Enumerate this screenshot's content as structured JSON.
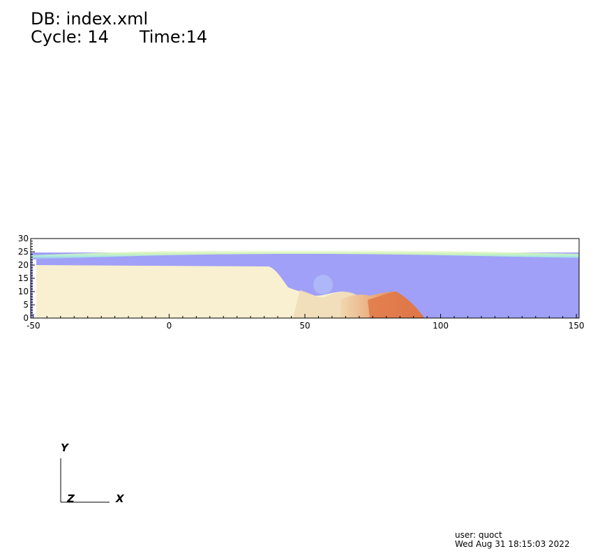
{
  "header": {
    "db_label": "DB: index.xml",
    "cycle_label": "Cycle: 14",
    "time_label": "Time:14"
  },
  "plot": {
    "x_ticks": [
      "-50",
      "0",
      "50",
      "100",
      "150"
    ],
    "x_tick_values": [
      -50,
      0,
      50,
      100,
      150
    ],
    "y_ticks": [
      "0",
      "5",
      "10",
      "15",
      "20",
      "25",
      "30"
    ],
    "y_tick_values": [
      0,
      5,
      10,
      15,
      20,
      25,
      30
    ],
    "x_range": [
      -51,
      151
    ],
    "y_range": [
      0,
      30
    ],
    "colors": {
      "water": "#a0a0f8",
      "sand": "#f8f0d0",
      "deposit": "#e8a070",
      "deposit_dark": "#d86840",
      "surface": "#c8f0b0"
    }
  },
  "triad": {
    "x_label": "X",
    "y_label": "Y",
    "z_label": "Z"
  },
  "footer": {
    "user": "user: quoct",
    "date": "Wed Aug 31 18:15:03 2022"
  }
}
